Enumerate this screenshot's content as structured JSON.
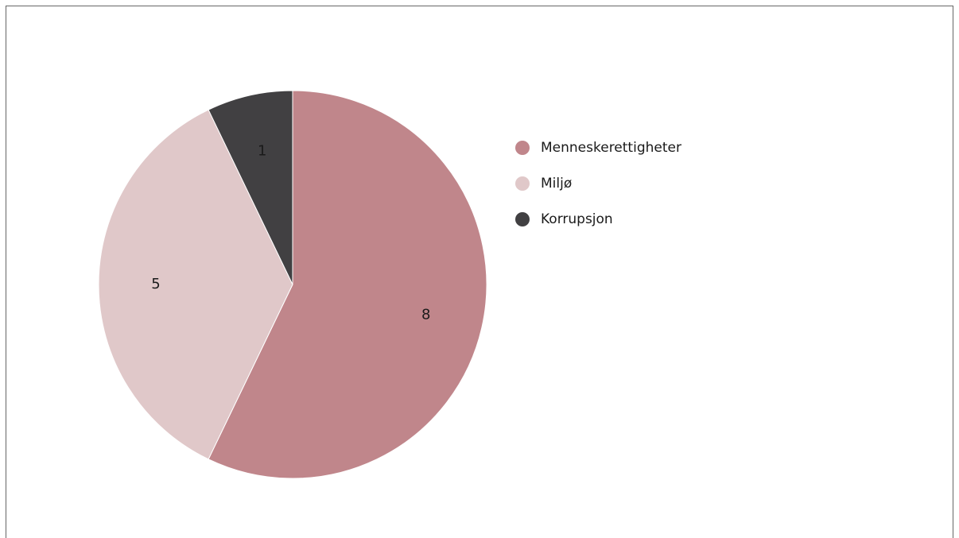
{
  "chart_data": {
    "type": "pie",
    "categories": [
      "Menneskerettigheter",
      "Miljø",
      "Korrupsjon"
    ],
    "values": [
      8,
      5,
      1
    ],
    "colors": [
      "#c0868b",
      "#e0c8c9",
      "#414042"
    ],
    "legend": "right"
  }
}
